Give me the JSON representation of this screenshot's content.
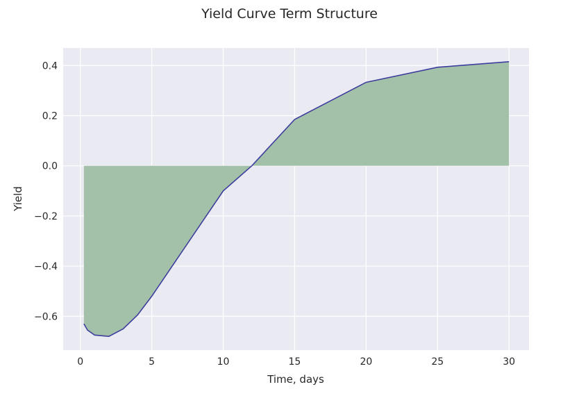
{
  "chart_data": {
    "type": "area",
    "title": "Yield Curve Term Structure",
    "xlabel": "Time, days",
    "ylabel": "Yield",
    "xlim": [
      -1.2,
      31.4
    ],
    "ylim": [
      -0.735,
      0.47
    ],
    "xticks": [
      0,
      5,
      10,
      15,
      20,
      25,
      30
    ],
    "yticks": [
      0.4,
      0.2,
      0.0,
      -0.2,
      -0.4,
      -0.6
    ],
    "ytick_labels": [
      "0.4",
      "0.2",
      "0.0",
      "−0.2",
      "−0.4",
      "−0.6"
    ],
    "grid": true,
    "series": [
      {
        "x": [
          0.25,
          0.5,
          1,
          2,
          3,
          4,
          5,
          10,
          12,
          15,
          20,
          25,
          30
        ],
        "y": [
          -0.63,
          -0.655,
          -0.675,
          -0.68,
          -0.65,
          -0.595,
          -0.52,
          -0.1,
          0.0,
          0.185,
          0.333,
          0.393,
          0.415
        ]
      }
    ],
    "colors": {
      "background": "#eaeaf2",
      "grid": "#ffffff",
      "fill": "#a3c1a9",
      "line": "#3d3d9e"
    }
  }
}
